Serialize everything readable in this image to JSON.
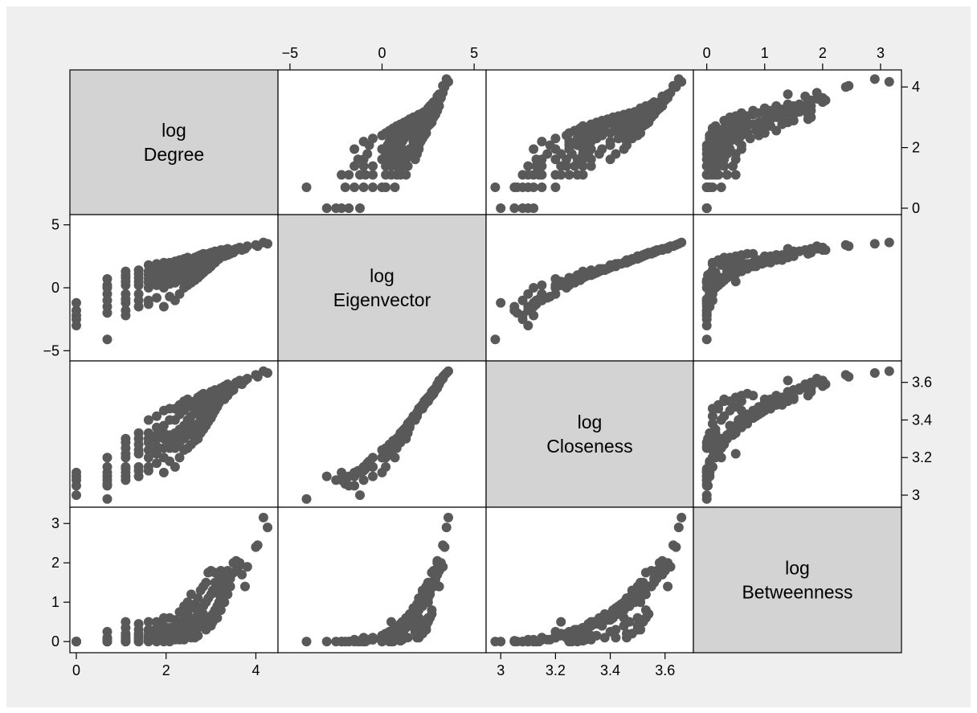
{
  "chart_data": {
    "type": "scatter",
    "kind": "scatter-matrix",
    "grid": false,
    "variables": [
      {
        "key": "degree",
        "label_lines": [
          "log",
          "Degree"
        ],
        "range": [
          0,
          4.35
        ],
        "ticks": [
          {
            "v": 0,
            "label": "0"
          },
          {
            "v": 2,
            "label": "2"
          },
          {
            "v": 4,
            "label": "4"
          }
        ]
      },
      {
        "key": "eigenvector",
        "label_lines": [
          "log",
          "Eigenvector"
        ],
        "range": [
          -5.3,
          5.3
        ],
        "ticks": [
          {
            "v": -5,
            "label": "−5"
          },
          {
            "v": 0,
            "label": "0"
          },
          {
            "v": 5,
            "label": "5"
          }
        ]
      },
      {
        "key": "closeness",
        "label_lines": [
          "log",
          "Closeness"
        ],
        "range": [
          2.97,
          3.68
        ],
        "ticks": [
          {
            "v": 3,
            "label": "3"
          },
          {
            "v": 3.2,
            "label": "3.2"
          },
          {
            "v": 3.4,
            "label": "3.4"
          },
          {
            "v": 3.6,
            "label": "3.6"
          }
        ]
      },
      {
        "key": "betweenness",
        "label_lines": [
          "log",
          "Betweenness"
        ],
        "range": [
          -0.12,
          3.25
        ],
        "ticks": [
          {
            "v": 0,
            "label": "0"
          },
          {
            "v": 1,
            "label": "1"
          },
          {
            "v": 2,
            "label": "2"
          },
          {
            "v": 3,
            "label": "3"
          }
        ]
      }
    ],
    "observations": [
      [
        0,
        -1.2,
        3.0,
        0
      ],
      [
        0,
        -1.8,
        3.05,
        0
      ],
      [
        0,
        -2.5,
        3.08,
        0
      ],
      [
        0,
        -3.0,
        3.1,
        0
      ],
      [
        0,
        -2.2,
        3.12,
        0
      ],
      [
        0.69,
        -4.1,
        2.98,
        0
      ],
      [
        0.69,
        -1.5,
        3.05,
        0.02
      ],
      [
        0.69,
        -0.5,
        3.1,
        0.05
      ],
      [
        0.69,
        0.2,
        3.15,
        0.1
      ],
      [
        0.69,
        0.7,
        3.2,
        0.25
      ],
      [
        0.69,
        -1.0,
        3.08,
        0.0
      ],
      [
        0.69,
        -2.0,
        3.06,
        0.0
      ],
      [
        0.69,
        0.0,
        3.12,
        0.0
      ],
      [
        1.1,
        -2.2,
        3.08,
        0
      ],
      [
        1.1,
        -1.2,
        3.12,
        0.02
      ],
      [
        1.1,
        -0.5,
        3.15,
        0.05
      ],
      [
        1.1,
        0.2,
        3.2,
        0.1
      ],
      [
        1.1,
        0.8,
        3.25,
        0.2
      ],
      [
        1.1,
        1.3,
        3.3,
        0.35
      ],
      [
        1.1,
        -1.8,
        3.1,
        0.0
      ],
      [
        1.1,
        0.5,
        3.22,
        0.5
      ],
      [
        1.1,
        -0.9,
        3.14,
        0.0
      ],
      [
        1.1,
        1.0,
        3.28,
        0.15
      ],
      [
        1.39,
        -1.5,
        3.1,
        0
      ],
      [
        1.39,
        -0.5,
        3.15,
        0.05
      ],
      [
        1.39,
        0.2,
        3.22,
        0.15
      ],
      [
        1.39,
        0.8,
        3.27,
        0.3
      ],
      [
        1.39,
        1.4,
        3.33,
        0.45
      ],
      [
        1.39,
        -1.0,
        3.13,
        0.0
      ],
      [
        1.39,
        0.5,
        3.24,
        0.2
      ],
      [
        1.39,
        1.1,
        3.3,
        0.1
      ],
      [
        1.61,
        -1.0,
        3.15,
        0.05
      ],
      [
        1.61,
        0.0,
        3.2,
        0.15
      ],
      [
        1.61,
        0.7,
        3.28,
        0.3
      ],
      [
        1.61,
        1.3,
        3.33,
        0.5
      ],
      [
        1.61,
        1.8,
        3.4,
        0.25
      ],
      [
        1.61,
        -1.3,
        3.13,
        0.0
      ],
      [
        1.61,
        0.4,
        3.24,
        0.1
      ],
      [
        1.61,
        1.0,
        3.3,
        0.02
      ],
      [
        1.79,
        -0.8,
        3.17,
        0.05
      ],
      [
        1.79,
        0.2,
        3.22,
        0.2
      ],
      [
        1.79,
        0.9,
        3.3,
        0.35
      ],
      [
        1.79,
        1.5,
        3.36,
        0.5
      ],
      [
        1.79,
        1.9,
        3.42,
        0.1
      ],
      [
        1.79,
        0.5,
        3.26,
        0.0
      ],
      [
        1.79,
        1.2,
        3.32,
        0.15
      ],
      [
        1.95,
        -1.5,
        3.12,
        0.05
      ],
      [
        1.95,
        0.0,
        3.2,
        0.1
      ],
      [
        1.95,
        0.8,
        3.3,
        0.25
      ],
      [
        1.95,
        1.5,
        3.37,
        0.4
      ],
      [
        1.95,
        2.0,
        3.45,
        0.6
      ],
      [
        1.95,
        0.4,
        3.25,
        0.0
      ],
      [
        1.95,
        1.1,
        3.33,
        0.15
      ],
      [
        2.08,
        -0.7,
        3.18,
        0.05
      ],
      [
        2.08,
        0.3,
        3.25,
        0.2
      ],
      [
        2.08,
        1.0,
        3.32,
        0.35
      ],
      [
        2.08,
        1.7,
        3.4,
        0.6
      ],
      [
        2.08,
        2.0,
        3.46,
        0.1
      ],
      [
        2.08,
        0.6,
        3.28,
        0.0
      ],
      [
        2.2,
        -1.0,
        3.15,
        0.1
      ],
      [
        2.2,
        0.4,
        3.25,
        0.25
      ],
      [
        2.2,
        1.1,
        3.33,
        0.4
      ],
      [
        2.2,
        1.7,
        3.4,
        0.55
      ],
      [
        2.2,
        2.1,
        3.46,
        0.2
      ],
      [
        2.2,
        0.8,
        3.3,
        0.05
      ],
      [
        2.3,
        -0.5,
        3.2,
        0.1
      ],
      [
        2.3,
        0.6,
        3.28,
        0.3
      ],
      [
        2.3,
        1.2,
        3.35,
        0.5
      ],
      [
        2.3,
        1.9,
        3.43,
        0.75
      ],
      [
        2.3,
        2.2,
        3.48,
        0.2
      ],
      [
        2.3,
        0.9,
        3.31,
        0.05
      ],
      [
        2.4,
        0.0,
        3.24,
        0.15
      ],
      [
        2.4,
        0.8,
        3.3,
        0.35
      ],
      [
        2.4,
        1.4,
        3.37,
        0.6
      ],
      [
        2.4,
        2.0,
        3.45,
        0.9
      ],
      [
        2.4,
        2.3,
        3.5,
        0.3
      ],
      [
        2.4,
        1.1,
        3.33,
        0.05
      ],
      [
        2.48,
        0.2,
        3.25,
        0.2
      ],
      [
        2.48,
        1.0,
        3.32,
        0.45
      ],
      [
        2.48,
        1.6,
        3.4,
        0.7
      ],
      [
        2.48,
        2.1,
        3.47,
        1.0
      ],
      [
        2.48,
        2.4,
        3.51,
        0.3
      ],
      [
        2.56,
        0.4,
        3.27,
        0.25
      ],
      [
        2.56,
        1.1,
        3.34,
        0.5
      ],
      [
        2.56,
        1.7,
        3.42,
        0.85
      ],
      [
        2.56,
        2.2,
        3.48,
        1.2
      ],
      [
        2.56,
        1.4,
        3.38,
        0.1
      ],
      [
        2.64,
        0.6,
        3.29,
        0.3
      ],
      [
        2.64,
        1.3,
        3.36,
        0.6
      ],
      [
        2.64,
        1.9,
        3.44,
        0.95
      ],
      [
        2.64,
        2.4,
        3.5,
        0.4
      ],
      [
        2.64,
        1.0,
        3.33,
        0.1
      ],
      [
        2.71,
        0.8,
        3.3,
        0.35
      ],
      [
        2.71,
        1.5,
        3.38,
        0.7
      ],
      [
        2.71,
        2.0,
        3.46,
        1.1
      ],
      [
        2.71,
        2.5,
        3.52,
        0.5
      ],
      [
        2.71,
        1.2,
        3.35,
        0.15
      ],
      [
        2.77,
        1.0,
        3.33,
        0.4
      ],
      [
        2.77,
        1.7,
        3.41,
        0.8
      ],
      [
        2.77,
        2.2,
        3.48,
        1.3
      ],
      [
        2.77,
        2.6,
        3.53,
        0.6
      ],
      [
        2.83,
        1.2,
        3.35,
        0.45
      ],
      [
        2.83,
        1.9,
        3.43,
        0.9
      ],
      [
        2.83,
        2.4,
        3.5,
        1.4
      ],
      [
        2.83,
        2.7,
        3.54,
        0.7
      ],
      [
        2.89,
        1.4,
        3.37,
        0.5
      ],
      [
        2.89,
        2.0,
        3.45,
        1.0
      ],
      [
        2.89,
        2.5,
        3.51,
        1.5
      ],
      [
        2.89,
        1.8,
        3.42,
        0.3
      ],
      [
        2.94,
        1.5,
        3.39,
        0.55
      ],
      [
        2.94,
        2.2,
        3.46,
        1.1
      ],
      [
        2.94,
        2.7,
        3.53,
        1.75
      ],
      [
        3.0,
        1.7,
        3.41,
        0.6
      ],
      [
        3.0,
        2.3,
        3.48,
        1.2
      ],
      [
        3.0,
        2.8,
        3.55,
        1.8
      ],
      [
        3.0,
        2.0,
        3.45,
        0.4
      ],
      [
        3.04,
        1.9,
        3.43,
        0.7
      ],
      [
        3.04,
        2.5,
        3.5,
        1.3
      ],
      [
        3.04,
        2.2,
        3.47,
        0.5
      ],
      [
        3.09,
        2.0,
        3.45,
        0.8
      ],
      [
        3.09,
        2.6,
        3.52,
        1.5
      ],
      [
        3.09,
        2.9,
        3.56,
        1.75
      ],
      [
        3.14,
        2.2,
        3.47,
        0.9
      ],
      [
        3.14,
        2.8,
        3.54,
        1.4
      ],
      [
        3.14,
        2.5,
        3.5,
        0.6
      ],
      [
        3.18,
        2.3,
        3.49,
        1.0
      ],
      [
        3.18,
        2.9,
        3.56,
        1.6
      ],
      [
        3.18,
        2.6,
        3.52,
        1.2
      ],
      [
        3.22,
        2.5,
        3.51,
        1.1
      ],
      [
        3.22,
        3.0,
        3.57,
        1.8
      ],
      [
        3.22,
        2.7,
        3.53,
        0.8
      ],
      [
        3.26,
        2.6,
        3.52,
        1.3
      ],
      [
        3.26,
        2.9,
        3.56,
        1.5
      ],
      [
        3.3,
        2.7,
        3.54,
        1.4
      ],
      [
        3.3,
        3.0,
        3.58,
        1.7
      ],
      [
        3.3,
        2.5,
        3.51,
        1.0
      ],
      [
        3.37,
        2.8,
        3.56,
        1.5
      ],
      [
        3.37,
        3.1,
        3.59,
        1.8
      ],
      [
        3.37,
        2.6,
        3.53,
        1.2
      ],
      [
        3.43,
        2.9,
        3.57,
        1.6
      ],
      [
        3.43,
        2.7,
        3.55,
        1.4
      ],
      [
        3.5,
        3.0,
        3.58,
        2.0
      ],
      [
        3.5,
        2.8,
        3.56,
        1.75
      ],
      [
        3.56,
        3.0,
        3.59,
        2.05
      ],
      [
        3.56,
        3.1,
        3.6,
        1.8
      ],
      [
        3.61,
        3.1,
        3.6,
        1.9
      ],
      [
        3.64,
        3.2,
        3.61,
        2.0
      ],
      [
        3.69,
        3.0,
        3.59,
        1.7
      ],
      [
        3.76,
        3.1,
        3.61,
        1.4
      ],
      [
        3.81,
        3.3,
        3.62,
        1.9
      ],
      [
        4.0,
        3.4,
        3.64,
        2.4
      ],
      [
        4.04,
        3.3,
        3.63,
        2.45
      ],
      [
        4.17,
        3.6,
        3.66,
        3.15
      ],
      [
        4.26,
        3.5,
        3.65,
        2.9
      ]
    ]
  }
}
